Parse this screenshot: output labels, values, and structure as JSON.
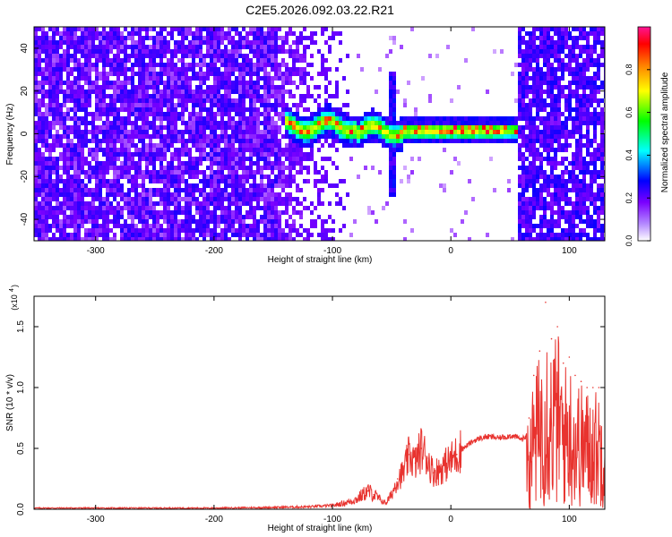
{
  "figure_title": "C2E5.2026.092.03.22.R21",
  "chart_data": [
    {
      "type": "heatmap",
      "title": "C2E5.2026.092.03.22.R21",
      "xlabel": "Height of straight line (km)",
      "ylabel": "Frequency (Hz)",
      "xlim": [
        -352,
        130
      ],
      "ylim": [
        -50,
        50
      ],
      "xticks": [
        -300,
        -200,
        -100,
        0,
        100
      ],
      "xtick_labels": [
        "-300",
        "-200",
        "-100",
        "0",
        "100"
      ],
      "yticks": [
        -40,
        -20,
        0,
        20,
        40
      ],
      "ytick_labels": [
        "-40",
        "-20",
        "0",
        "20",
        "40"
      ],
      "colorbar": {
        "label": "Normalized spectral amplitude",
        "range": [
          0,
          1
        ],
        "ticks": [
          0.0,
          0.2,
          0.4,
          0.6,
          0.8
        ],
        "tick_labels": [
          "0.0",
          "0.2",
          "0.4",
          "0.6",
          "0.8"
        ],
        "colormap": [
          "#ffffff",
          "#7a00ff",
          "#0000ff",
          "#00ffff",
          "#00ff00",
          "#ffff00",
          "#ff8000",
          "#ff0000",
          "#ff1493"
        ]
      },
      "features": {
        "dense_noise_region_km": [
          -352,
          -145
        ],
        "quiet_region_km": [
          -145,
          60
        ],
        "signal_band": {
          "start_km": -140,
          "end_km": 58,
          "freq_hz": 1.5,
          "peak_amplitude": 0.95
        },
        "spike_km": -50,
        "noisy_region_km": [
          58,
          130
        ]
      }
    },
    {
      "type": "line",
      "xlabel": "Height of straight line (km)",
      "ylabel": "SNR (10 * v/v)",
      "y_scale_label": "(x10",
      "y_scale_exp": "4",
      "xlim": [
        -352,
        130
      ],
      "ylim": [
        0,
        1.75
      ],
      "xticks": [
        -300,
        -200,
        -100,
        0,
        100
      ],
      "xtick_labels": [
        "-300",
        "-200",
        "-100",
        "0",
        "100"
      ],
      "yticks": [
        0.0,
        0.5,
        1.0,
        1.5
      ],
      "ytick_labels": [
        "0.0",
        "0.5",
        "1.0",
        "1.5"
      ],
      "series": [
        {
          "name": "SNR",
          "color": "#e8332f",
          "x": [
            -352,
            -300,
            -250,
            -200,
            -150,
            -120,
            -100,
            -90,
            -80,
            -70,
            -65,
            -60,
            -55,
            -50,
            -45,
            -40,
            -35,
            -30,
            -25,
            -20,
            -15,
            -10,
            -5,
            0,
            5,
            10,
            15,
            20,
            25,
            30,
            35,
            40,
            45,
            50,
            55,
            60,
            63,
            66,
            70,
            75,
            80,
            85,
            90,
            95,
            100,
            105,
            110,
            115,
            120,
            125,
            130
          ],
          "y": [
            0.01,
            0.01,
            0.01,
            0.01,
            0.015,
            0.02,
            0.03,
            0.05,
            0.08,
            0.15,
            0.12,
            0.08,
            0.05,
            0.12,
            0.25,
            0.3,
            0.45,
            0.38,
            0.5,
            0.42,
            0.3,
            0.32,
            0.36,
            0.4,
            0.45,
            0.5,
            0.54,
            0.57,
            0.59,
            0.6,
            0.6,
            0.59,
            0.6,
            0.61,
            0.6,
            0.58,
            0.6,
            0.75,
            1.1,
            1.3,
            1.7,
            1.4,
            1.5,
            1.2,
            1.25,
            1.1,
            1.05,
            1.0,
            1.0,
            1.0,
            1.0
          ]
        }
      ]
    }
  ]
}
